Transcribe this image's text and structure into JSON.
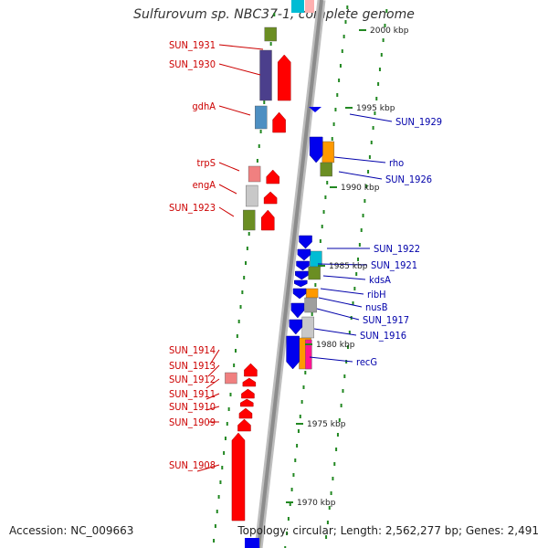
{
  "title": "Sulfurovum sp. NBC37-1, complete genome",
  "accession": "Accession: NC_009663",
  "topology": "Topology: circular; Length: 2,562,277 bp; Genes: 2,491",
  "colors": {
    "backbone": "#9a9a9a",
    "forward_gene": "#ff0000",
    "reverse_gene": "#0000ee",
    "forward_label": "#cc0000",
    "reverse_label": "#0000aa",
    "tick": "#228822"
  },
  "scale_labels": [
    "2000 kbp",
    "1995 kbp",
    "1990 kbp",
    "1985 kbp",
    "1980 kbp",
    "1975 kbp",
    "1970 kbp"
  ],
  "forward_labels": [
    "SUN_1931",
    "SUN_1930",
    "gdhA",
    "trpS",
    "engA",
    "SUN_1923",
    "SUN_1914",
    "SUN_1913",
    "SUN_1912",
    "SUN_1911",
    "SUN_1910",
    "SUN_1909",
    "SUN_1908"
  ],
  "reverse_labels": [
    "SUN_1929",
    "rho",
    "SUN_1926",
    "SUN_1922",
    "SUN_1921",
    "kdsA",
    "ribH",
    "nusB",
    "SUN_1917",
    "SUN_1916",
    "recG"
  ]
}
